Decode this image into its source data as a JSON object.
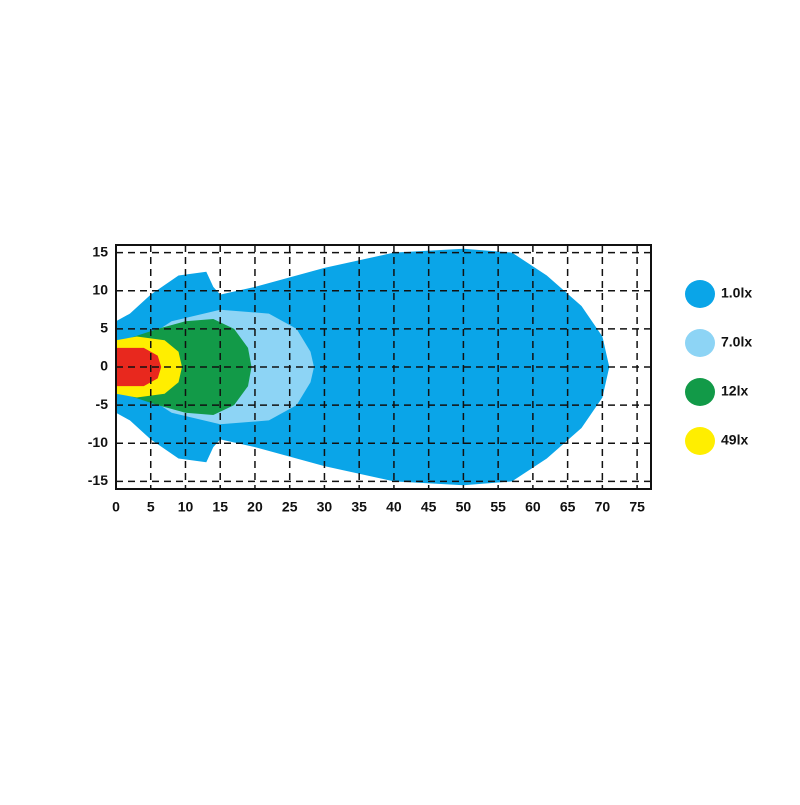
{
  "chart_data": {
    "type": "contour",
    "xlim": [
      0,
      77
    ],
    "ylim": [
      -16,
      16
    ],
    "xticks": [
      0,
      5,
      10,
      15,
      20,
      25,
      30,
      35,
      40,
      45,
      50,
      55,
      60,
      65,
      70,
      75
    ],
    "yticks": [
      -15,
      -10,
      -5,
      0,
      5,
      10,
      15
    ],
    "grid": true,
    "legend": "right",
    "series": [
      {
        "name": "1.0lx",
        "color": "#0aa5e8",
        "x": [
          0,
          2,
          5,
          9,
          13,
          14,
          15,
          20,
          30,
          40,
          50,
          57,
          62,
          67,
          70,
          71,
          70,
          67,
          62,
          57,
          50,
          40,
          30,
          20,
          15,
          14,
          13,
          9,
          5,
          2,
          0
        ],
        "y": [
          6,
          7,
          9.5,
          12,
          12.5,
          10.5,
          9.5,
          10.5,
          13,
          15,
          15.5,
          15,
          12,
          8,
          4,
          0,
          -4,
          -8,
          -12,
          -15,
          -15.5,
          -15,
          -13,
          -10.5,
          -9.5,
          -10.5,
          -12.5,
          -12,
          -9.5,
          -7,
          -6
        ]
      },
      {
        "name": "7.0lx",
        "color": "#8dd4f5",
        "x": [
          3,
          8,
          15,
          22,
          26,
          28,
          28.5,
          28,
          26,
          22,
          15,
          8,
          3
        ],
        "y": [
          3,
          6,
          7.5,
          7,
          5,
          2,
          0,
          -2,
          -5,
          -7,
          -7.5,
          -6,
          -3
        ]
      },
      {
        "name": "12lx",
        "color": "#129a48",
        "x": [
          1,
          6,
          10,
          14,
          17,
          19,
          19.5,
          19,
          17,
          14,
          10,
          6,
          1
        ],
        "y": [
          3.5,
          5,
          6,
          6.3,
          5,
          2.5,
          0,
          -2.5,
          -5,
          -6.3,
          -6,
          -5,
          -3.5
        ]
      },
      {
        "name": "49lx",
        "color": "#ffee00",
        "x": [
          0,
          3,
          7,
          9,
          9.5,
          9,
          7,
          3,
          0
        ],
        "y": [
          3.5,
          4,
          3.5,
          2,
          0,
          -2,
          -3.5,
          -4,
          -3.5
        ]
      }
    ],
    "core": {
      "color": "#e8281e",
      "x": [
        0,
        4,
        6,
        6.5,
        6,
        4,
        0
      ],
      "y": [
        2.5,
        2.5,
        1.5,
        0,
        -1.5,
        -2.5,
        -2.5
      ]
    }
  }
}
